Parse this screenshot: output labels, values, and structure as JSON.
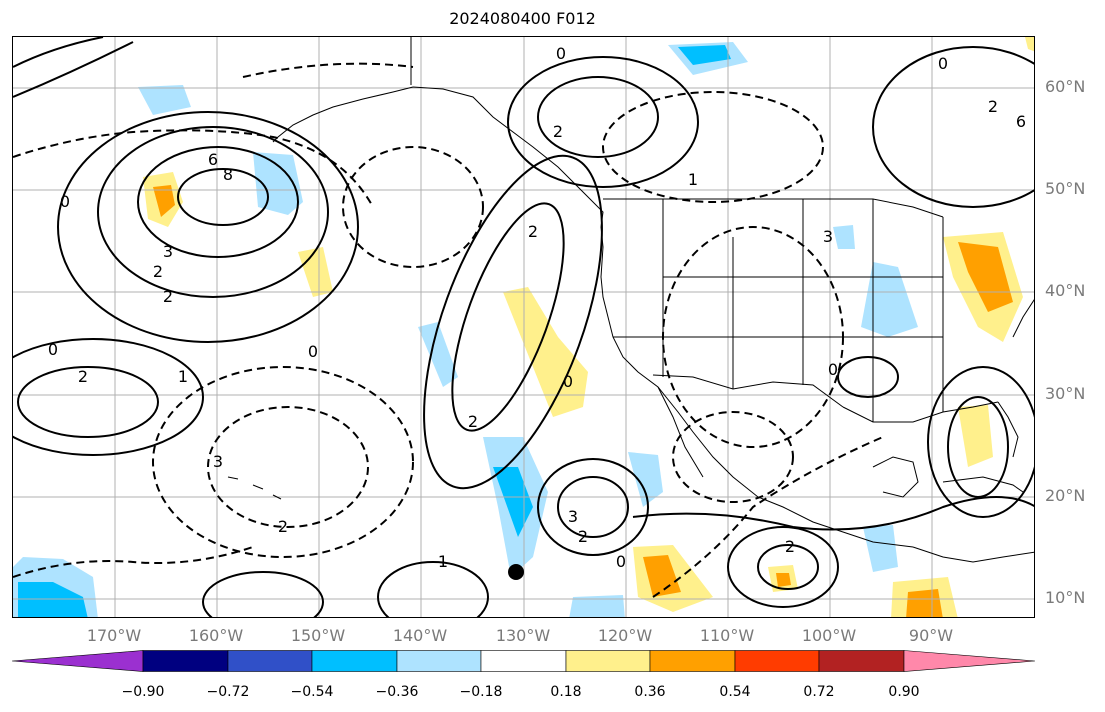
{
  "title": "2024080400 F012",
  "latitude_labels": [
    "60°N",
    "50°N",
    "40°N",
    "30°N",
    "20°N",
    "10°N"
  ],
  "longitude_labels": [
    "170°W",
    "160°W",
    "150°W",
    "140°W",
    "130°W",
    "120°W",
    "110°W",
    "100°W",
    "90°W"
  ],
  "colorbar": {
    "ticks": [
      "−0.90",
      "−0.72",
      "−0.54",
      "−0.36",
      "−0.18",
      "0.18",
      "0.36",
      "0.54",
      "0.72",
      "0.90"
    ],
    "colors": [
      "#9b30d0",
      "#000080",
      "#3050c8",
      "#00bfff",
      "#aee3ff",
      "#ffffff",
      "#fff08c",
      "#ffa000",
      "#ff3c00",
      "#b22222",
      "#ff88aa"
    ]
  },
  "contour_labels": [
    "6",
    "8",
    "0",
    "3",
    "2",
    "2",
    "0",
    "1",
    "2",
    "0",
    "2",
    "2",
    "3",
    "2",
    "0",
    "2",
    "0",
    "1",
    "0",
    "3",
    "2",
    "2",
    "0",
    "1",
    "2",
    "0",
    "3",
    "6"
  ],
  "marker": {
    "name": "black-dot",
    "lon": -130.5,
    "lat": 12.5
  }
}
